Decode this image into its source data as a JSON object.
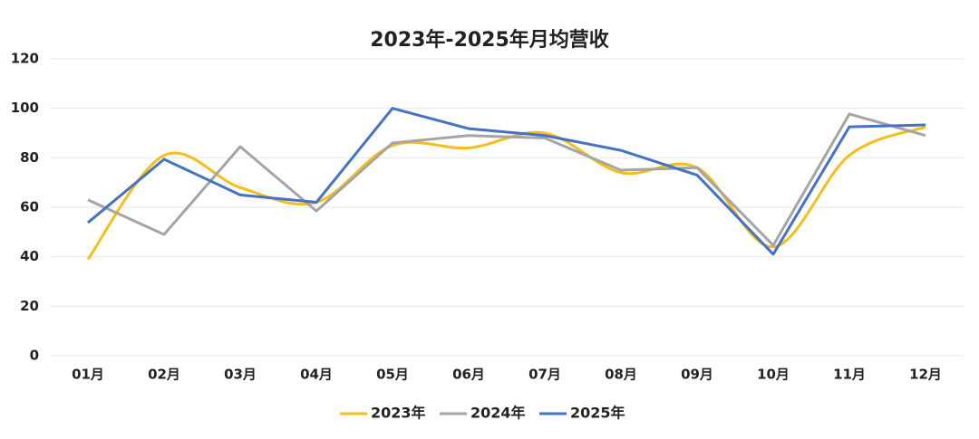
{
  "chart_data": {
    "type": "line",
    "title": "2023年-2025年月均营收",
    "categories": [
      "01月",
      "02月",
      "03月",
      "04月",
      "05月",
      "06月",
      "07月",
      "08月",
      "09月",
      "10月",
      "11月",
      "12月"
    ],
    "series": [
      {
        "name": "2023年",
        "color": "#f5bf1b",
        "smooth": true,
        "values": [
          39,
          81,
          68,
          62,
          85,
          84,
          90,
          74,
          76,
          44,
          81,
          92.5
        ]
      },
      {
        "name": "2024年",
        "color": "#a5a5a5",
        "smooth": false,
        "values": [
          63,
          49,
          84.5,
          58.5,
          86,
          89,
          88,
          75,
          76,
          44.6,
          97.7,
          89
        ]
      },
      {
        "name": "2025年",
        "color": "#4472c4",
        "smooth": false,
        "values": [
          53.8,
          79.4,
          65,
          62,
          100,
          91.8,
          89,
          83,
          73,
          41,
          92.5,
          93.3
        ]
      }
    ],
    "ylim": [
      0,
      120
    ],
    "yticks": [
      0,
      20,
      40,
      60,
      80,
      100,
      120
    ],
    "grid": true,
    "legend": "bottom"
  }
}
